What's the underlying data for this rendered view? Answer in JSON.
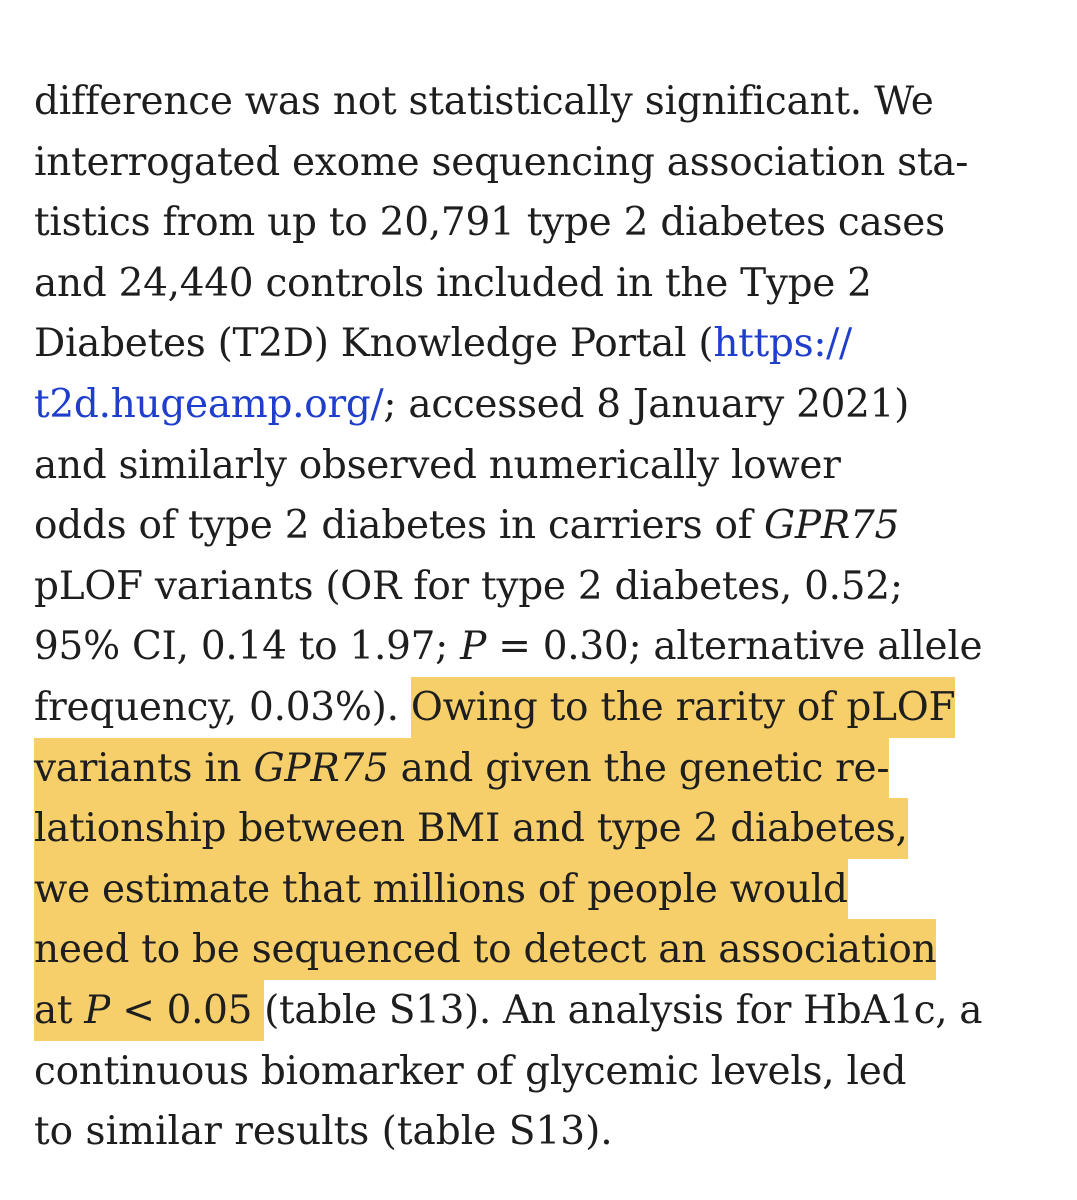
{
  "colors": {
    "text": "#1e1e1e",
    "link": "#1f3ecb",
    "highlight": "#f7cf6a",
    "background": "#ffffff"
  },
  "lines": [
    [
      {
        "t": "difference was not statistically significant. We"
      }
    ],
    [
      {
        "t": "interrogated exome sequencing association sta-"
      }
    ],
    [
      {
        "t": "tistics from up to 20,791 type 2 diabetes cases"
      }
    ],
    [
      {
        "t": "and 24,440 controls included in the Type 2"
      }
    ],
    [
      {
        "t": "Diabetes (T2D) Knowledge Portal ("
      },
      {
        "t": "https://",
        "link": true
      }
    ],
    [
      {
        "t": "t2d.hugeamp.org/",
        "link": true
      },
      {
        "t": "; accessed 8 January 2021)"
      }
    ],
    [
      {
        "t": "and similarly observed numerically lower"
      }
    ],
    [
      {
        "t": "odds of type 2 diabetes in carriers of "
      },
      {
        "t": "GPR75",
        "italic": true
      }
    ],
    [
      {
        "t": "pLOF variants (OR for type 2 diabetes, 0.52;"
      }
    ],
    [
      {
        "t": "95% CI, 0.14 to 1.97; "
      },
      {
        "t": "P",
        "italic": true
      },
      {
        "t": " = 0.30; alternative allele"
      }
    ],
    [
      {
        "t": "frequency, 0.03%). "
      },
      {
        "t": "Owing to the rarity of pLOF",
        "hl": true
      }
    ],
    [
      {
        "t": "variants in ",
        "hl": true
      },
      {
        "t": "GPR75",
        "italic": true,
        "hl": true
      },
      {
        "t": " and given the genetic re-",
        "hl": true
      }
    ],
    [
      {
        "t": "lationship between BMI and type 2 diabetes,",
        "hl": true
      }
    ],
    [
      {
        "t": "we estimate that millions of people would",
        "hl": true
      }
    ],
    [
      {
        "t": "need to be sequenced to detect an association",
        "hl": true
      }
    ],
    [
      {
        "t": "at ",
        "hl": true
      },
      {
        "t": "P",
        "italic": true,
        "hl": true
      },
      {
        "t": " < 0.05 ",
        "hl": true
      },
      {
        "t": "(table S13). An analysis for HbA1c, a"
      }
    ],
    [
      {
        "t": "continuous biomarker of glycemic levels, led"
      }
    ],
    [
      {
        "t": "to similar results (table S13)."
      }
    ]
  ]
}
